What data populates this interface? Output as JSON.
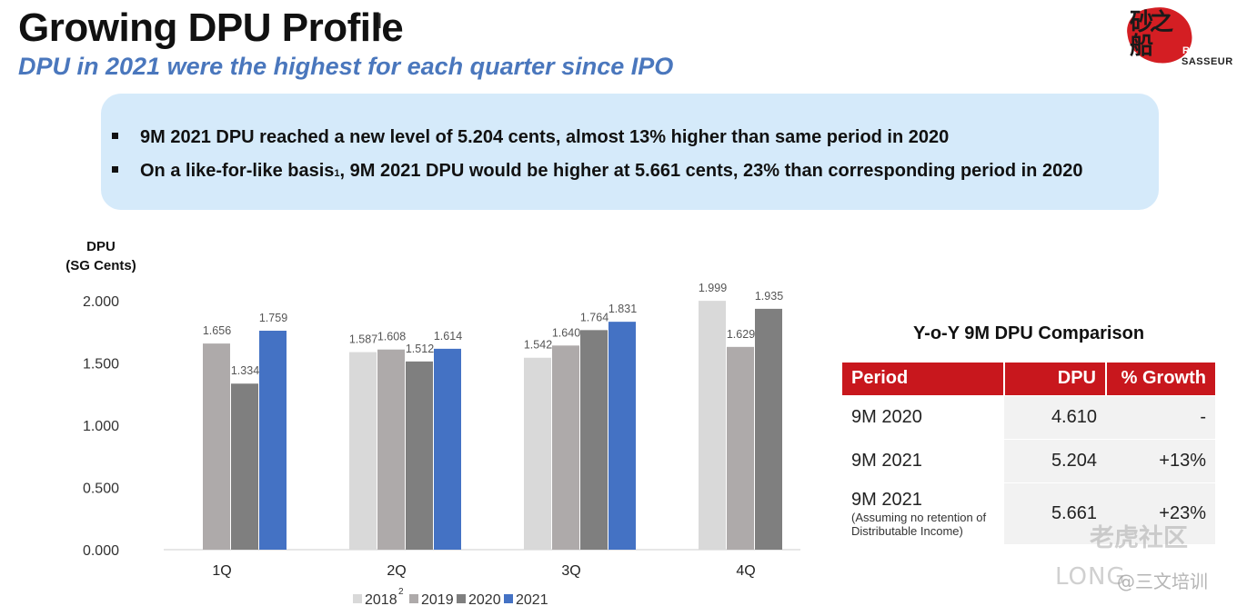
{
  "header": {
    "title": "Growing DPU Profile",
    "subtitle": "DPU in 2021 were the highest for each quarter since IPO"
  },
  "logo": {
    "glyph": "砂之船",
    "reit": "REIT",
    "sasseur": "SASSEUR"
  },
  "callout": {
    "bullet1": "9M 2021 DPU reached a new level of 5.204 cents, almost 13% higher than same period in 2020",
    "bullet2_pre": "On a like-for-like basis",
    "bullet2_sup": "1",
    "bullet2_post": ", 9M 2021 DPU would be higher at 5.661 cents, 23% than corresponding period in 2020"
  },
  "chart_data": {
    "type": "bar",
    "ylabel_line1": "DPU",
    "ylabel_line2": "(SG Cents)",
    "ylim": [
      0,
      2.0
    ],
    "yticks": [
      "0.000",
      "0.500",
      "1.000",
      "1.500",
      "2.000"
    ],
    "categories": [
      "1Q",
      "2Q",
      "3Q",
      "4Q"
    ],
    "series": [
      {
        "name": "2018",
        "sup": "2",
        "color": "#d9d9d9",
        "values": [
          null,
          1.587,
          1.542,
          1.999
        ],
        "labels": [
          "",
          "1.587",
          "1.542",
          "1.999"
        ]
      },
      {
        "name": "2019",
        "color": "#aeaaaa",
        "values": [
          1.656,
          1.608,
          1.64,
          1.629
        ],
        "labels": [
          "1.656",
          "1.608",
          "1.640",
          "1.629"
        ]
      },
      {
        "name": "2020",
        "color": "#7f7f7f",
        "values": [
          1.334,
          1.512,
          1.764,
          1.935
        ],
        "labels": [
          "1.334",
          "1.512",
          "1.764",
          "1.935"
        ]
      },
      {
        "name": "2021",
        "color": "#4472c4",
        "values": [
          1.759,
          1.614,
          1.831,
          null
        ],
        "labels": [
          "1.759",
          "1.614",
          "1.831",
          ""
        ]
      }
    ],
    "legend_position": "bottom"
  },
  "comparison": {
    "title": "Y-o-Y 9M DPU Comparison",
    "headers": [
      "Period",
      "DPU",
      "% Growth"
    ],
    "rows": [
      {
        "period": "9M 2020",
        "note": "",
        "dpu": "4.610",
        "growth": "-"
      },
      {
        "period": "9M 2021",
        "note": "",
        "dpu": "5.204",
        "growth": "+13%"
      },
      {
        "period": "9M 2021",
        "note": "(Assuming no retention of Distributable Income)",
        "dpu": "5.661",
        "growth": "+23%"
      }
    ]
  },
  "watermark": {
    "line1": "老虎社区",
    "line2": "LONG",
    "line3": "@三文培训"
  },
  "colors": {
    "accent_blue": "#4a77bd",
    "table_red": "#c8171d",
    "callout_bg": "#d5eafa"
  }
}
